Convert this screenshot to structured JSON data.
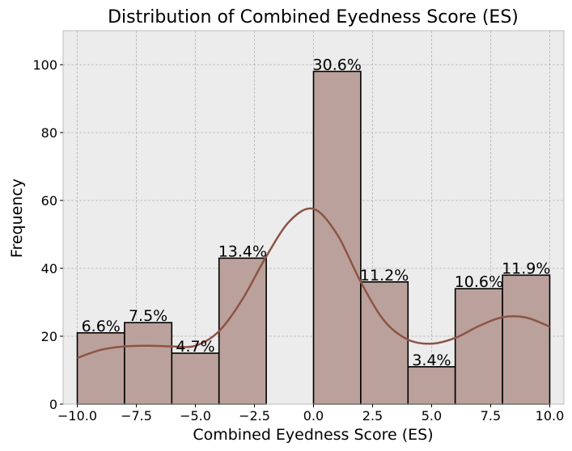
{
  "chart_data": {
    "type": "bar",
    "title": "Distribution of Combined Eyedness Score (ES)",
    "xlabel": "Combined Eyedness Score (ES)",
    "ylabel": "Frequency",
    "xlim": [
      -10.6,
      10.6
    ],
    "ylim": [
      0,
      110
    ],
    "xticks": [
      -10.0,
      -7.5,
      -5.0,
      -2.5,
      0.0,
      2.5,
      5.0,
      7.5,
      10.0
    ],
    "xtick_labels": [
      "−10.0",
      "−7.5",
      "−5.0",
      "−2.5",
      "0.0",
      "2.5",
      "5.0",
      "7.5",
      "10.0"
    ],
    "yticks": [
      0,
      20,
      40,
      60,
      80,
      100
    ],
    "ytick_labels": [
      "0",
      "20",
      "40",
      "60",
      "80",
      "100"
    ],
    "grid": true,
    "bins": [
      {
        "x0": -10,
        "x1": -8,
        "count": 21,
        "label": "6.6%"
      },
      {
        "x0": -8,
        "x1": -6,
        "count": 24,
        "label": "7.5%"
      },
      {
        "x0": -6,
        "x1": -4,
        "count": 15,
        "label": "4.7%"
      },
      {
        "x0": -4,
        "x1": -2,
        "count": 43,
        "label": "13.4%"
      },
      {
        "x0": -2,
        "x1": 0,
        "count": 0,
        "label": ""
      },
      {
        "x0": 0,
        "x1": 2,
        "count": 98,
        "label": "30.6%"
      },
      {
        "x0": 2,
        "x1": 4,
        "count": 36,
        "label": "11.2%"
      },
      {
        "x0": 4,
        "x1": 6,
        "count": 11,
        "label": "3.4%"
      },
      {
        "x0": 6,
        "x1": 8,
        "count": 34,
        "label": "10.6%"
      },
      {
        "x0": 8,
        "x1": 10,
        "count": 38,
        "label": "11.9%"
      }
    ],
    "kde": {
      "x": [
        -10,
        -9,
        -8,
        -7,
        -6,
        -5,
        -4,
        -3,
        -2,
        -1,
        0,
        1,
        2,
        3,
        4,
        5,
        6,
        7,
        8,
        9,
        10
      ],
      "y": [
        13.6,
        16,
        17,
        17.2,
        17,
        17.2,
        21.5,
        31,
        43.5,
        54,
        57.5,
        50,
        36,
        24.5,
        19,
        17.8,
        19.5,
        23,
        25.6,
        25.5,
        22.8
      ]
    },
    "colors": {
      "bar_fill": "#bba19b",
      "bar_edge": "#000000",
      "kde_line": "#8c5446",
      "plot_bg": "#ececec",
      "grid": "#b4b4b4"
    }
  }
}
